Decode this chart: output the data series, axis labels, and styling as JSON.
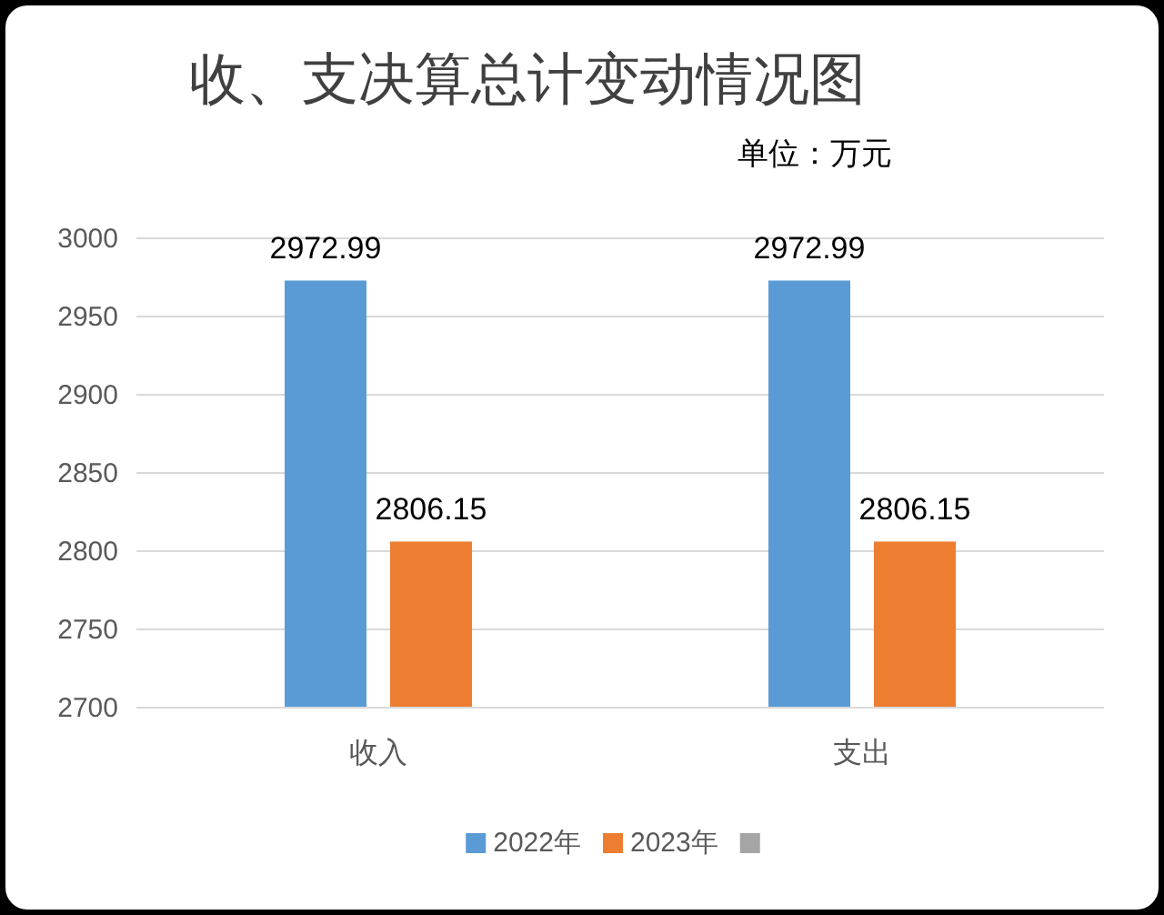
{
  "chart_data": {
    "type": "bar",
    "title": "收、支决算总计变动情况图",
    "subtitle": "单位：万元",
    "categories": [
      "收入",
      "支出"
    ],
    "series": [
      {
        "name": "2022年",
        "color": "#5b9bd5",
        "values": [
          2972.99,
          2972.99
        ]
      },
      {
        "name": "2023年",
        "color": "#ed7d31",
        "values": [
          2806.15,
          2806.15
        ]
      },
      {
        "color": "#a5a5a5",
        "values": [
          null,
          null
        ]
      }
    ],
    "ylim": [
      2700,
      3000
    ],
    "yticks": [
      2700,
      2750,
      2800,
      2850,
      2900,
      2950,
      3000
    ],
    "grid": "y",
    "legend": "bottom",
    "data_labels": true
  }
}
